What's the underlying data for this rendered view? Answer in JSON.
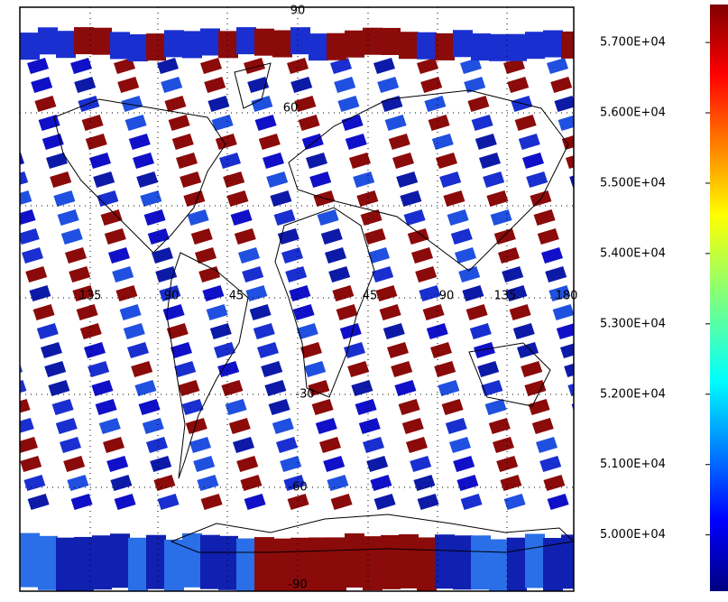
{
  "map": {
    "longitude_labels": [
      "135",
      "90",
      "45",
      "45",
      "90",
      "135",
      "180"
    ],
    "latitude_labels": [
      "90",
      "60",
      "-30",
      "-60",
      "-90"
    ],
    "colorbar": {
      "range": [
        49200,
        57540
      ],
      "ticks": [
        {
          "value": 57000,
          "label": "5.700E+04"
        },
        {
          "value": 56000,
          "label": "5.600E+04"
        },
        {
          "value": 55000,
          "label": "5.500E+04"
        },
        {
          "value": 54000,
          "label": "5.400E+04"
        },
        {
          "value": 53000,
          "label": "5.300E+04"
        },
        {
          "value": 52000,
          "label": "5.200E+04"
        },
        {
          "value": 51000,
          "label": "5.100E+04"
        },
        {
          "value": 50000,
          "label": "5.000E+04"
        }
      ]
    }
  }
}
